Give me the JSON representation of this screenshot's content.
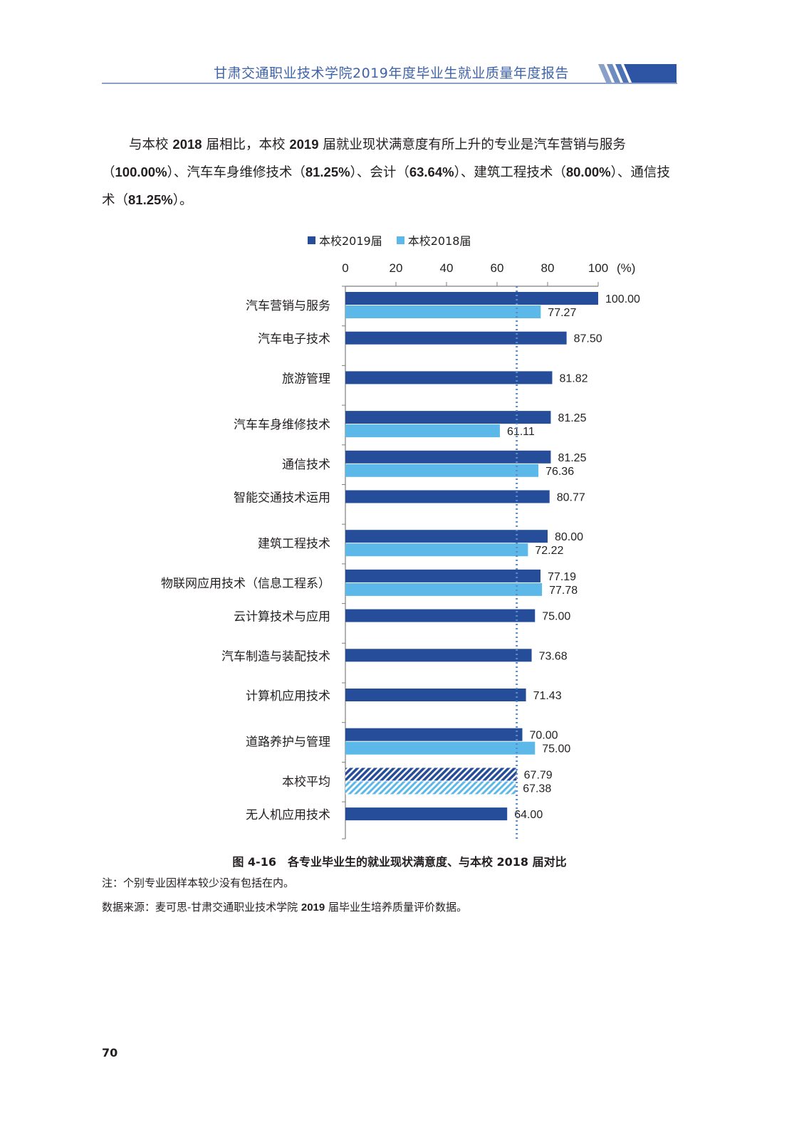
{
  "header": {
    "title": "甘肃交通职业技术学院2019年度毕业生就业质量年度报告"
  },
  "paragraph": {
    "part1": "与本校",
    "y2018": "2018",
    "part2": "届相比，本校",
    "y2019": "2019",
    "part3": "届就业现状满意度有所上升的专业是汽车营销与服务（",
    "v1": "100.00%",
    "part4": "）、汽车车身维修技术（",
    "v2": "81.25%",
    "part5": "）、会计（",
    "v3": "63.64%",
    "part6": "）、建筑工程技术（",
    "v4": "80.00%",
    "part7": "）、通信技术（",
    "v5": "81.25%",
    "part8": "）。"
  },
  "colors": {
    "series2019": "#264d9a",
    "series2018": "#5bb8e8",
    "axis": "#7f7f7f",
    "dotted": "#5b8bc9"
  },
  "chart_data": {
    "type": "bar",
    "orientation": "horizontal",
    "title": "",
    "xlabel": "(%)",
    "xlim": [
      0,
      100
    ],
    "xticks": [
      "0",
      "20",
      "40",
      "60",
      "80",
      "100"
    ],
    "reference_line": 67.79,
    "legend": [
      "本校2019届",
      "本校2018届"
    ],
    "categories": [
      "汽车营销与服务",
      "汽车电子技术",
      "旅游管理",
      "汽车车身维修技术",
      "通信技术",
      "智能交通技术运用",
      "建筑工程技术",
      "物联网应用技术（信息工程系）",
      "云计算技术与应用",
      "汽车制造与装配技术",
      "计算机应用技术",
      "道路养护与管理",
      "本校平均",
      "无人机应用技术"
    ],
    "series": [
      {
        "name": "本校2019届",
        "values": [
          100.0,
          87.5,
          81.82,
          81.25,
          81.25,
          80.77,
          80.0,
          77.19,
          75.0,
          73.68,
          71.43,
          70.0,
          67.79,
          64.0
        ],
        "labels": [
          "100.00",
          "87.50",
          "81.82",
          "81.25",
          "81.25",
          "80.77",
          "80.00",
          "77.19",
          "75.00",
          "73.68",
          "71.43",
          "70.00",
          "67.79",
          "64.00"
        ]
      },
      {
        "name": "本校2018届",
        "values": [
          77.27,
          null,
          null,
          61.11,
          76.36,
          null,
          72.22,
          77.78,
          null,
          null,
          null,
          75.0,
          67.38,
          null
        ],
        "labels": [
          "77.27",
          null,
          null,
          "61.11",
          "76.36",
          null,
          "72.22",
          "77.78",
          null,
          null,
          null,
          "75.00",
          "67.38",
          null
        ]
      }
    ],
    "hatched_category": "本校平均"
  },
  "caption": "图 4-16　各专业毕业生的就业现状满意度、与本校 2018 届对比",
  "notes": {
    "note1": "注：个别专业因样本较少没有包括在内。",
    "source_prefix": "数据来源：麦可思-甘肃交通职业技术学院",
    "source_year": "2019",
    "source_suffix": "届毕业生培养质量评价数据。"
  },
  "page_number": "70"
}
